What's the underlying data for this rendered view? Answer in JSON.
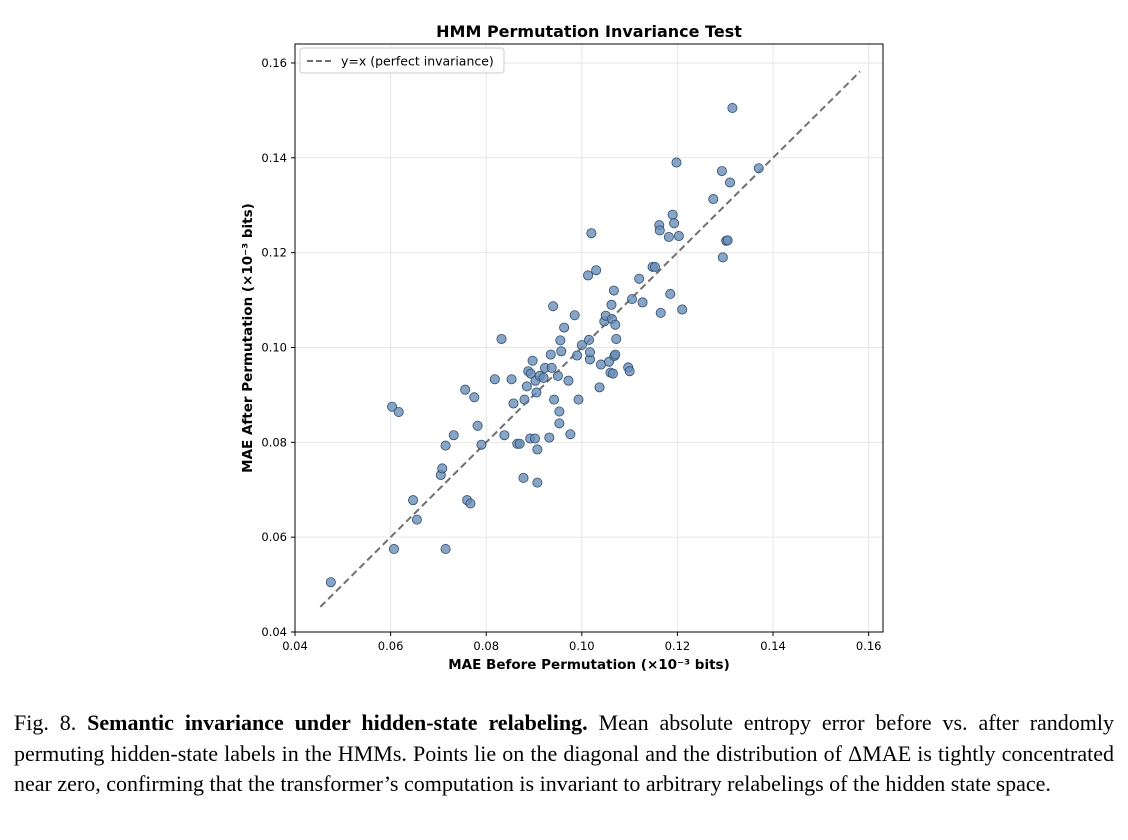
{
  "chart_data": {
    "type": "scatter",
    "title": "HMM Permutation Invariance Test",
    "xlabel": "MAE Before Permutation (×10⁻³ bits)",
    "ylabel": "MAE After Permutation (×10⁻³ bits)",
    "xlim": [
      0.04,
      0.163
    ],
    "ylim": [
      0.04,
      0.164
    ],
    "xticks": [
      0.04,
      0.06,
      0.08,
      0.1,
      0.12,
      0.14,
      0.16
    ],
    "yticks": [
      0.04,
      0.06,
      0.08,
      0.1,
      0.12,
      0.14,
      0.16
    ],
    "xtick_labels": [
      "0.04",
      "0.06",
      "0.08",
      "0.10",
      "0.12",
      "0.14",
      "0.16"
    ],
    "ytick_labels": [
      "0.04",
      "0.06",
      "0.08",
      "0.10",
      "0.12",
      "0.14",
      "0.16"
    ],
    "grid": true,
    "legend_position": "top-left",
    "diagonal": {
      "name": "y=x (perfect invariance)",
      "x": [
        0.0453,
        0.1582
      ],
      "y": [
        0.0453,
        0.1582
      ],
      "color": "#707070"
    },
    "point_color": "#6a8fb8",
    "point_edge_color": "#2e4d70",
    "points": [
      [
        0.0475,
        0.0505
      ],
      [
        0.0603,
        0.0875
      ],
      [
        0.0617,
        0.0864
      ],
      [
        0.0607,
        0.0575
      ],
      [
        0.0647,
        0.0678
      ],
      [
        0.0655,
        0.0637
      ],
      [
        0.0705,
        0.0731
      ],
      [
        0.0708,
        0.0745
      ],
      [
        0.0715,
        0.0793
      ],
      [
        0.0715,
        0.0575
      ],
      [
        0.0732,
        0.0815
      ],
      [
        0.0756,
        0.0911
      ],
      [
        0.076,
        0.0678
      ],
      [
        0.0767,
        0.0671
      ],
      [
        0.0775,
        0.0895
      ],
      [
        0.0782,
        0.0835
      ],
      [
        0.079,
        0.0795
      ],
      [
        0.0818,
        0.0933
      ],
      [
        0.0832,
        0.1018
      ],
      [
        0.0838,
        0.0815
      ],
      [
        0.0853,
        0.0933
      ],
      [
        0.0857,
        0.0882
      ],
      [
        0.0865,
        0.0797
      ],
      [
        0.087,
        0.0797
      ],
      [
        0.0878,
        0.0725
      ],
      [
        0.088,
        0.089
      ],
      [
        0.0885,
        0.0918
      ],
      [
        0.0888,
        0.095
      ],
      [
        0.0892,
        0.0808
      ],
      [
        0.0893,
        0.0945
      ],
      [
        0.0897,
        0.0972
      ],
      [
        0.0902,
        0.0808
      ],
      [
        0.0903,
        0.093
      ],
      [
        0.0905,
        0.0905
      ],
      [
        0.0907,
        0.0785
      ],
      [
        0.0907,
        0.0715
      ],
      [
        0.0912,
        0.094
      ],
      [
        0.092,
        0.0936
      ],
      [
        0.0923,
        0.0957
      ],
      [
        0.0932,
        0.081
      ],
      [
        0.0935,
        0.0985
      ],
      [
        0.0937,
        0.0957
      ],
      [
        0.094,
        0.1087
      ],
      [
        0.0942,
        0.089
      ],
      [
        0.095,
        0.094
      ],
      [
        0.0953,
        0.0865
      ],
      [
        0.0953,
        0.084
      ],
      [
        0.0955,
        0.1015
      ],
      [
        0.0957,
        0.0992
      ],
      [
        0.0963,
        0.1042
      ],
      [
        0.0972,
        0.093
      ],
      [
        0.0976,
        0.0817
      ],
      [
        0.0985,
        0.1068
      ],
      [
        0.099,
        0.0983
      ],
      [
        0.0993,
        0.089
      ],
      [
        0.1,
        0.1005
      ],
      [
        0.1013,
        0.1152
      ],
      [
        0.1015,
        0.1016
      ],
      [
        0.1017,
        0.0975
      ],
      [
        0.1017,
        0.099
      ],
      [
        0.102,
        0.1241
      ],
      [
        0.103,
        0.1163
      ],
      [
        0.1037,
        0.0916
      ],
      [
        0.104,
        0.0964
      ],
      [
        0.1047,
        0.1055
      ],
      [
        0.105,
        0.1067
      ],
      [
        0.1057,
        0.097
      ],
      [
        0.106,
        0.0947
      ],
      [
        0.1062,
        0.109
      ],
      [
        0.1063,
        0.106
      ],
      [
        0.1065,
        0.0945
      ],
      [
        0.1067,
        0.112
      ],
      [
        0.1068,
        0.0982
      ],
      [
        0.107,
        0.0985
      ],
      [
        0.107,
        0.1048
      ],
      [
        0.1072,
        0.1018
      ],
      [
        0.1097,
        0.0958
      ],
      [
        0.11,
        0.095
      ],
      [
        0.1105,
        0.1102
      ],
      [
        0.112,
        0.1145
      ],
      [
        0.1127,
        0.1095
      ],
      [
        0.1148,
        0.117
      ],
      [
        0.1153,
        0.117
      ],
      [
        0.1162,
        0.1258
      ],
      [
        0.1163,
        0.1247
      ],
      [
        0.1165,
        0.1073
      ],
      [
        0.1182,
        0.1233
      ],
      [
        0.1185,
        0.1113
      ],
      [
        0.119,
        0.128
      ],
      [
        0.1193,
        0.1262
      ],
      [
        0.1198,
        0.139
      ],
      [
        0.1203,
        0.1235
      ],
      [
        0.121,
        0.108
      ],
      [
        0.1275,
        0.1313
      ],
      [
        0.1293,
        0.1372
      ],
      [
        0.1295,
        0.119
      ],
      [
        0.1302,
        0.1225
      ],
      [
        0.1305,
        0.1226
      ],
      [
        0.131,
        0.1348
      ],
      [
        0.1315,
        0.1505
      ],
      [
        0.137,
        0.1378
      ]
    ]
  },
  "caption": {
    "label": "Fig. 8.",
    "title": "Semantic invariance under hidden-state relabeling.",
    "body": "Mean absolute entropy error before vs. after randomly permuting hidden-state labels in the HMMs. Points lie on the diagonal and the distribution of ΔMAE is tightly concentrated near zero, confirming that the transformer’s computation is invariant to arbitrary relabelings of the hidden state space."
  }
}
